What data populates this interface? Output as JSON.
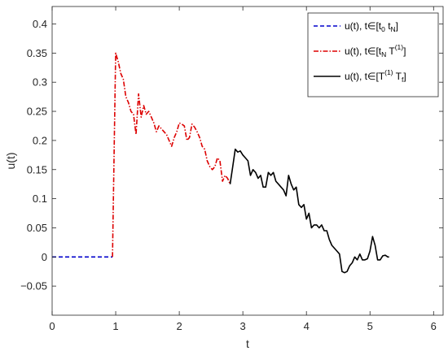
{
  "chart_data": {
    "type": "line",
    "xlabel": "t",
    "ylabel": "u(t)",
    "xlim": [
      0,
      6.15
    ],
    "ylim": [
      -0.1,
      0.43
    ],
    "xticks": [
      0,
      1,
      2,
      3,
      4,
      5,
      6
    ],
    "xtick_labels": [
      "0",
      "1",
      "2",
      "3",
      "4",
      "5",
      "6"
    ],
    "yticks": [
      -0.05,
      0,
      0.05,
      0.1,
      0.15,
      0.2,
      0.25,
      0.3,
      0.35,
      0.4
    ],
    "ytick_labels": [
      "−0.05",
      "0",
      "0.05",
      "0.1",
      "0.15",
      "0.2",
      "0.25",
      "0.3",
      "0.35",
      "0.4"
    ],
    "grid": false,
    "legend_position": "top-right",
    "series": [
      {
        "legend": {
          "lead": "u(t), t∈[t",
          "sub1": "0",
          "mid": " t",
          "sub2": "N",
          "end": "]"
        },
        "color": "#0000cc",
        "style": "dashed",
        "points": [
          [
            0,
            0
          ],
          [
            0.5,
            0
          ],
          [
            0.95,
            0
          ]
        ]
      },
      {
        "legend": {
          "lead": "u(t), t∈[t",
          "sub1": "N",
          "mid": " T",
          "sup": "(1)",
          "end": "]"
        },
        "color": "#dd0000",
        "style": "dashdot",
        "points": [
          [
            0.95,
            0
          ],
          [
            1.0,
            0.35
          ],
          [
            1.04,
            0.335
          ],
          [
            1.08,
            0.315
          ],
          [
            1.12,
            0.305
          ],
          [
            1.16,
            0.275
          ],
          [
            1.2,
            0.265
          ],
          [
            1.24,
            0.25
          ],
          [
            1.28,
            0.245
          ],
          [
            1.32,
            0.21
          ],
          [
            1.36,
            0.28
          ],
          [
            1.4,
            0.24
          ],
          [
            1.44,
            0.26
          ],
          [
            1.48,
            0.245
          ],
          [
            1.52,
            0.25
          ],
          [
            1.56,
            0.24
          ],
          [
            1.6,
            0.23
          ],
          [
            1.64,
            0.215
          ],
          [
            1.68,
            0.225
          ],
          [
            1.72,
            0.22
          ],
          [
            1.76,
            0.215
          ],
          [
            1.8,
            0.21
          ],
          [
            1.84,
            0.2
          ],
          [
            1.88,
            0.19
          ],
          [
            1.92,
            0.205
          ],
          [
            1.96,
            0.215
          ],
          [
            2.0,
            0.23
          ],
          [
            2.04,
            0.228
          ],
          [
            2.08,
            0.225
          ],
          [
            2.12,
            0.2
          ],
          [
            2.16,
            0.205
          ],
          [
            2.2,
            0.228
          ],
          [
            2.24,
            0.223
          ],
          [
            2.28,
            0.215
          ],
          [
            2.32,
            0.205
          ],
          [
            2.36,
            0.19
          ],
          [
            2.4,
            0.185
          ],
          [
            2.44,
            0.165
          ],
          [
            2.48,
            0.155
          ],
          [
            2.52,
            0.15
          ],
          [
            2.56,
            0.155
          ],
          [
            2.6,
            0.17
          ],
          [
            2.64,
            0.165
          ],
          [
            2.68,
            0.13
          ],
          [
            2.72,
            0.14
          ],
          [
            2.76,
            0.135
          ],
          [
            2.8,
            0.125
          ]
        ]
      },
      {
        "legend": {
          "lead": "u(t), t∈[T",
          "sup": "(1)",
          "mid": " T",
          "sub2": "f",
          "end": "]"
        },
        "color": "#000000",
        "style": "solid",
        "points": [
          [
            2.8,
            0.125
          ],
          [
            2.84,
            0.155
          ],
          [
            2.88,
            0.185
          ],
          [
            2.92,
            0.18
          ],
          [
            2.96,
            0.182
          ],
          [
            3.0,
            0.175
          ],
          [
            3.04,
            0.17
          ],
          [
            3.08,
            0.165
          ],
          [
            3.12,
            0.14
          ],
          [
            3.16,
            0.15
          ],
          [
            3.2,
            0.145
          ],
          [
            3.24,
            0.135
          ],
          [
            3.28,
            0.14
          ],
          [
            3.32,
            0.12
          ],
          [
            3.36,
            0.12
          ],
          [
            3.4,
            0.145
          ],
          [
            3.44,
            0.14
          ],
          [
            3.48,
            0.145
          ],
          [
            3.52,
            0.13
          ],
          [
            3.56,
            0.125
          ],
          [
            3.6,
            0.12
          ],
          [
            3.64,
            0.115
          ],
          [
            3.68,
            0.105
          ],
          [
            3.72,
            0.14
          ],
          [
            3.76,
            0.125
          ],
          [
            3.8,
            0.115
          ],
          [
            3.84,
            0.12
          ],
          [
            3.88,
            0.09
          ],
          [
            3.92,
            0.085
          ],
          [
            3.96,
            0.09
          ],
          [
            4.0,
            0.065
          ],
          [
            4.04,
            0.075
          ],
          [
            4.08,
            0.05
          ],
          [
            4.12,
            0.055
          ],
          [
            4.16,
            0.055
          ],
          [
            4.2,
            0.05
          ],
          [
            4.24,
            0.055
          ],
          [
            4.28,
            0.045
          ],
          [
            4.32,
            0.045
          ],
          [
            4.36,
            0.03
          ],
          [
            4.4,
            0.02
          ],
          [
            4.44,
            0.015
          ],
          [
            4.48,
            0.01
          ],
          [
            4.52,
            0.005
          ],
          [
            4.56,
            -0.025
          ],
          [
            4.6,
            -0.027
          ],
          [
            4.64,
            -0.025
          ],
          [
            4.68,
            -0.015
          ],
          [
            4.72,
            -0.01
          ],
          [
            4.76,
            0.0
          ],
          [
            4.8,
            -0.005
          ],
          [
            4.84,
            0.005
          ],
          [
            4.88,
            -0.005
          ],
          [
            4.92,
            -0.005
          ],
          [
            4.96,
            -0.003
          ],
          [
            5.0,
            0.01
          ],
          [
            5.04,
            0.035
          ],
          [
            5.08,
            0.02
          ],
          [
            5.12,
            -0.005
          ],
          [
            5.16,
            -0.005
          ],
          [
            5.2,
            0.002
          ],
          [
            5.24,
            0.003
          ],
          [
            5.28,
            0.0
          ],
          [
            5.3,
            0.0
          ]
        ]
      }
    ]
  }
}
